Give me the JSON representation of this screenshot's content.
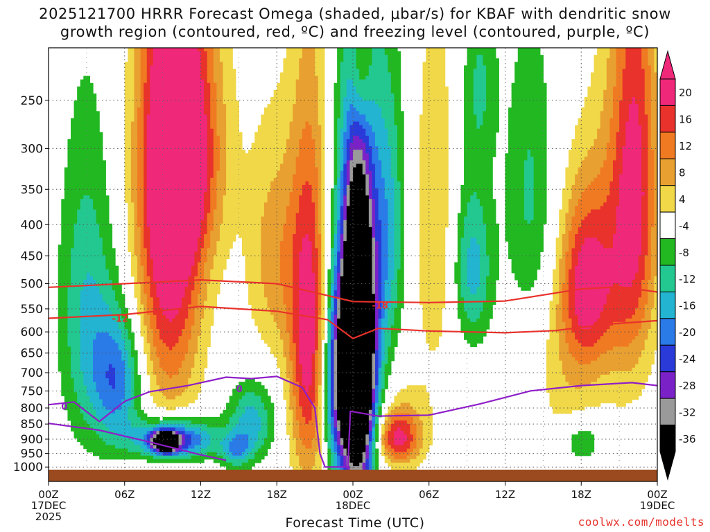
{
  "title_line1": "2025121700 HRRR Forecast Omega (shaded, μbar/s) for KBAF with dendritic snow",
  "title_line2": "growth region (contoured, red, ºC) and freezing level (contoured, purple, ºC)",
  "credit": "coolwx.com/modelts",
  "chart_data": {
    "type": "heatmap",
    "title": "2025121700 HRRR Forecast Omega (shaded, μbar/s) for KBAF with dendritic snow growth region (contoured, red, ºC) and freezing level (contoured, purple, ºC)",
    "xlabel": "Forecast Time (UTC)",
    "ylabel": "",
    "xlim": [
      0,
      48
    ],
    "ylim": [
      1010,
      205
    ],
    "x_ticks": [
      {
        "x": 0,
        "l1": "00Z",
        "l2": "17DEC",
        "l3": "2025"
      },
      {
        "x": 6,
        "l1": "06Z",
        "l2": "",
        "l3": ""
      },
      {
        "x": 12,
        "l1": "12Z",
        "l2": "",
        "l3": ""
      },
      {
        "x": 18,
        "l1": "18Z",
        "l2": "",
        "l3": ""
      },
      {
        "x": 24,
        "l1": "00Z",
        "l2": "18DEC",
        "l3": ""
      },
      {
        "x": 30,
        "l1": "06Z",
        "l2": "",
        "l3": ""
      },
      {
        "x": 36,
        "l1": "12Z",
        "l2": "",
        "l3": ""
      },
      {
        "x": 42,
        "l1": "18Z",
        "l2": "",
        "l3": ""
      },
      {
        "x": 48,
        "l1": "00Z",
        "l2": "19DEC",
        "l3": ""
      }
    ],
    "y_ticks": [
      250,
      300,
      350,
      400,
      450,
      500,
      550,
      600,
      650,
      700,
      750,
      800,
      850,
      900,
      950,
      1000
    ],
    "colorbar": {
      "levels": [
        20,
        16,
        12,
        8,
        4,
        -4,
        -8,
        -12,
        -16,
        -20,
        -24,
        -28,
        -32,
        -36
      ],
      "colors": [
        "#f0287a",
        "#e8322b",
        "#f07a22",
        "#e8a030",
        "#f0d848",
        "#ffffff",
        "#22b822",
        "#22c890",
        "#22b4d0",
        "#2a7ae8",
        "#2a3ad8",
        "#7a22c8",
        "#9a9a9a",
        "#000000"
      ],
      "top_color": "#f0287a",
      "bottom_color": "#000000"
    },
    "blobs": [
      {
        "x": 9.5,
        "p": 400,
        "rx": 2.6,
        "rp": 380,
        "v": 24
      },
      {
        "x": 11,
        "p": 300,
        "rx": 3.0,
        "rp": 160,
        "v": 18
      },
      {
        "x": 3,
        "p": 560,
        "rx": 2.2,
        "rp": 320,
        "v": -12
      },
      {
        "x": 5.5,
        "p": 720,
        "rx": 2.0,
        "rp": 180,
        "v": -18
      },
      {
        "x": 10,
        "p": 900,
        "rx": 3.2,
        "rp": 70,
        "v": -26
      },
      {
        "x": 9.2,
        "p": 910,
        "rx": 1.0,
        "rp": 35,
        "v": -40
      },
      {
        "x": 16,
        "p": 840,
        "rx": 1.8,
        "rp": 120,
        "v": -14
      },
      {
        "x": 17.8,
        "p": 450,
        "rx": 2.2,
        "rp": 200,
        "v": 10
      },
      {
        "x": 20.6,
        "p": 620,
        "rx": 1.6,
        "rp": 400,
        "v": 24
      },
      {
        "x": 22.8,
        "p": 720,
        "rx": 1.4,
        "rp": 260,
        "v": -22
      },
      {
        "x": 24.4,
        "p": 650,
        "rx": 1.8,
        "rp": 440,
        "v": -30
      },
      {
        "x": 24.4,
        "p": 650,
        "rx": 1.1,
        "rp": 350,
        "v": -40
      },
      {
        "x": 26.8,
        "p": 400,
        "rx": 1.4,
        "rp": 220,
        "v": -12
      },
      {
        "x": 24.6,
        "p": 220,
        "rx": 0.9,
        "rp": 70,
        "v": 14
      },
      {
        "x": 27.4,
        "p": 900,
        "rx": 1.8,
        "rp": 90,
        "v": 18
      },
      {
        "x": 30.5,
        "p": 400,
        "rx": 1.8,
        "rp": 280,
        "v": 8
      },
      {
        "x": 33.4,
        "p": 470,
        "rx": 1.6,
        "rp": 150,
        "v": -14
      },
      {
        "x": 34,
        "p": 230,
        "rx": 1.4,
        "rp": 80,
        "v": -8
      },
      {
        "x": 38,
        "p": 360,
        "rx": 2.0,
        "rp": 200,
        "v": -9
      },
      {
        "x": 41,
        "p": 700,
        "rx": 2.6,
        "rp": 300,
        "v": 6
      },
      {
        "x": 42.4,
        "p": 500,
        "rx": 2.0,
        "rp": 170,
        "v": 20
      },
      {
        "x": 45.6,
        "p": 420,
        "rx": 2.2,
        "rp": 300,
        "v": 16
      },
      {
        "x": 46.5,
        "p": 300,
        "rx": 1.6,
        "rp": 250,
        "v": 10
      },
      {
        "x": 42,
        "p": 910,
        "rx": 1.6,
        "rp": 80,
        "v": -10
      },
      {
        "x": 14.8,
        "p": 940,
        "rx": 1.2,
        "rp": 60,
        "v": -12
      },
      {
        "x": 28,
        "p": 840,
        "rx": 2.4,
        "rp": 150,
        "v": 6
      }
    ],
    "contours": [
      {
        "name": "-18ºC isotherm",
        "color": "#e8322b",
        "label": "-18",
        "label_at": [
          25.5,
          542
        ],
        "points": [
          [
            0,
            507
          ],
          [
            6,
            500
          ],
          [
            12,
            493
          ],
          [
            18,
            500
          ],
          [
            24,
            535
          ],
          [
            30,
            537
          ],
          [
            36,
            534
          ],
          [
            42,
            510
          ],
          [
            45,
            506
          ],
          [
            48,
            516
          ]
        ]
      },
      {
        "name": "-12ºC isotherm",
        "color": "#e8322b",
        "label": "-12",
        "label_at": [
          5,
          570
        ],
        "points": [
          [
            0,
            570
          ],
          [
            6,
            562
          ],
          [
            12,
            545
          ],
          [
            18,
            555
          ],
          [
            22,
            573
          ],
          [
            24,
            615
          ],
          [
            26,
            592
          ],
          [
            30,
            598
          ],
          [
            36,
            602
          ],
          [
            40,
            597
          ],
          [
            44,
            583
          ],
          [
            48,
            575
          ]
        ]
      },
      {
        "name": "0ºC freezing level",
        "color": "#8f1ec8",
        "label": "0",
        "label_at": [
          1,
          795
        ],
        "points": [
          [
            0,
            790
          ],
          [
            2,
            782
          ],
          [
            4,
            842
          ],
          [
            6,
            780
          ],
          [
            8,
            752
          ],
          [
            11,
            735
          ],
          [
            14,
            712
          ],
          [
            16,
            716
          ],
          [
            18,
            710
          ],
          [
            20,
            740
          ],
          [
            21,
            800
          ],
          [
            21.4,
            950
          ],
          [
            21.8,
            1000
          ],
          [
            23.6,
            1000
          ],
          [
            23.8,
            810
          ],
          [
            26,
            825
          ],
          [
            30,
            822
          ],
          [
            34,
            788
          ],
          [
            38,
            750
          ],
          [
            42,
            735
          ],
          [
            46,
            727
          ],
          [
            48,
            735
          ]
        ]
      },
      {
        "name": "0ºC freezing level (low)",
        "color": "#8f1ec8",
        "label": "0",
        "label_at": [
          14.8,
          743
        ],
        "points": [
          [
            0,
            848
          ],
          [
            4,
            870
          ],
          [
            8,
            910
          ],
          [
            12,
            955
          ],
          [
            14,
            975
          ]
        ]
      }
    ]
  }
}
